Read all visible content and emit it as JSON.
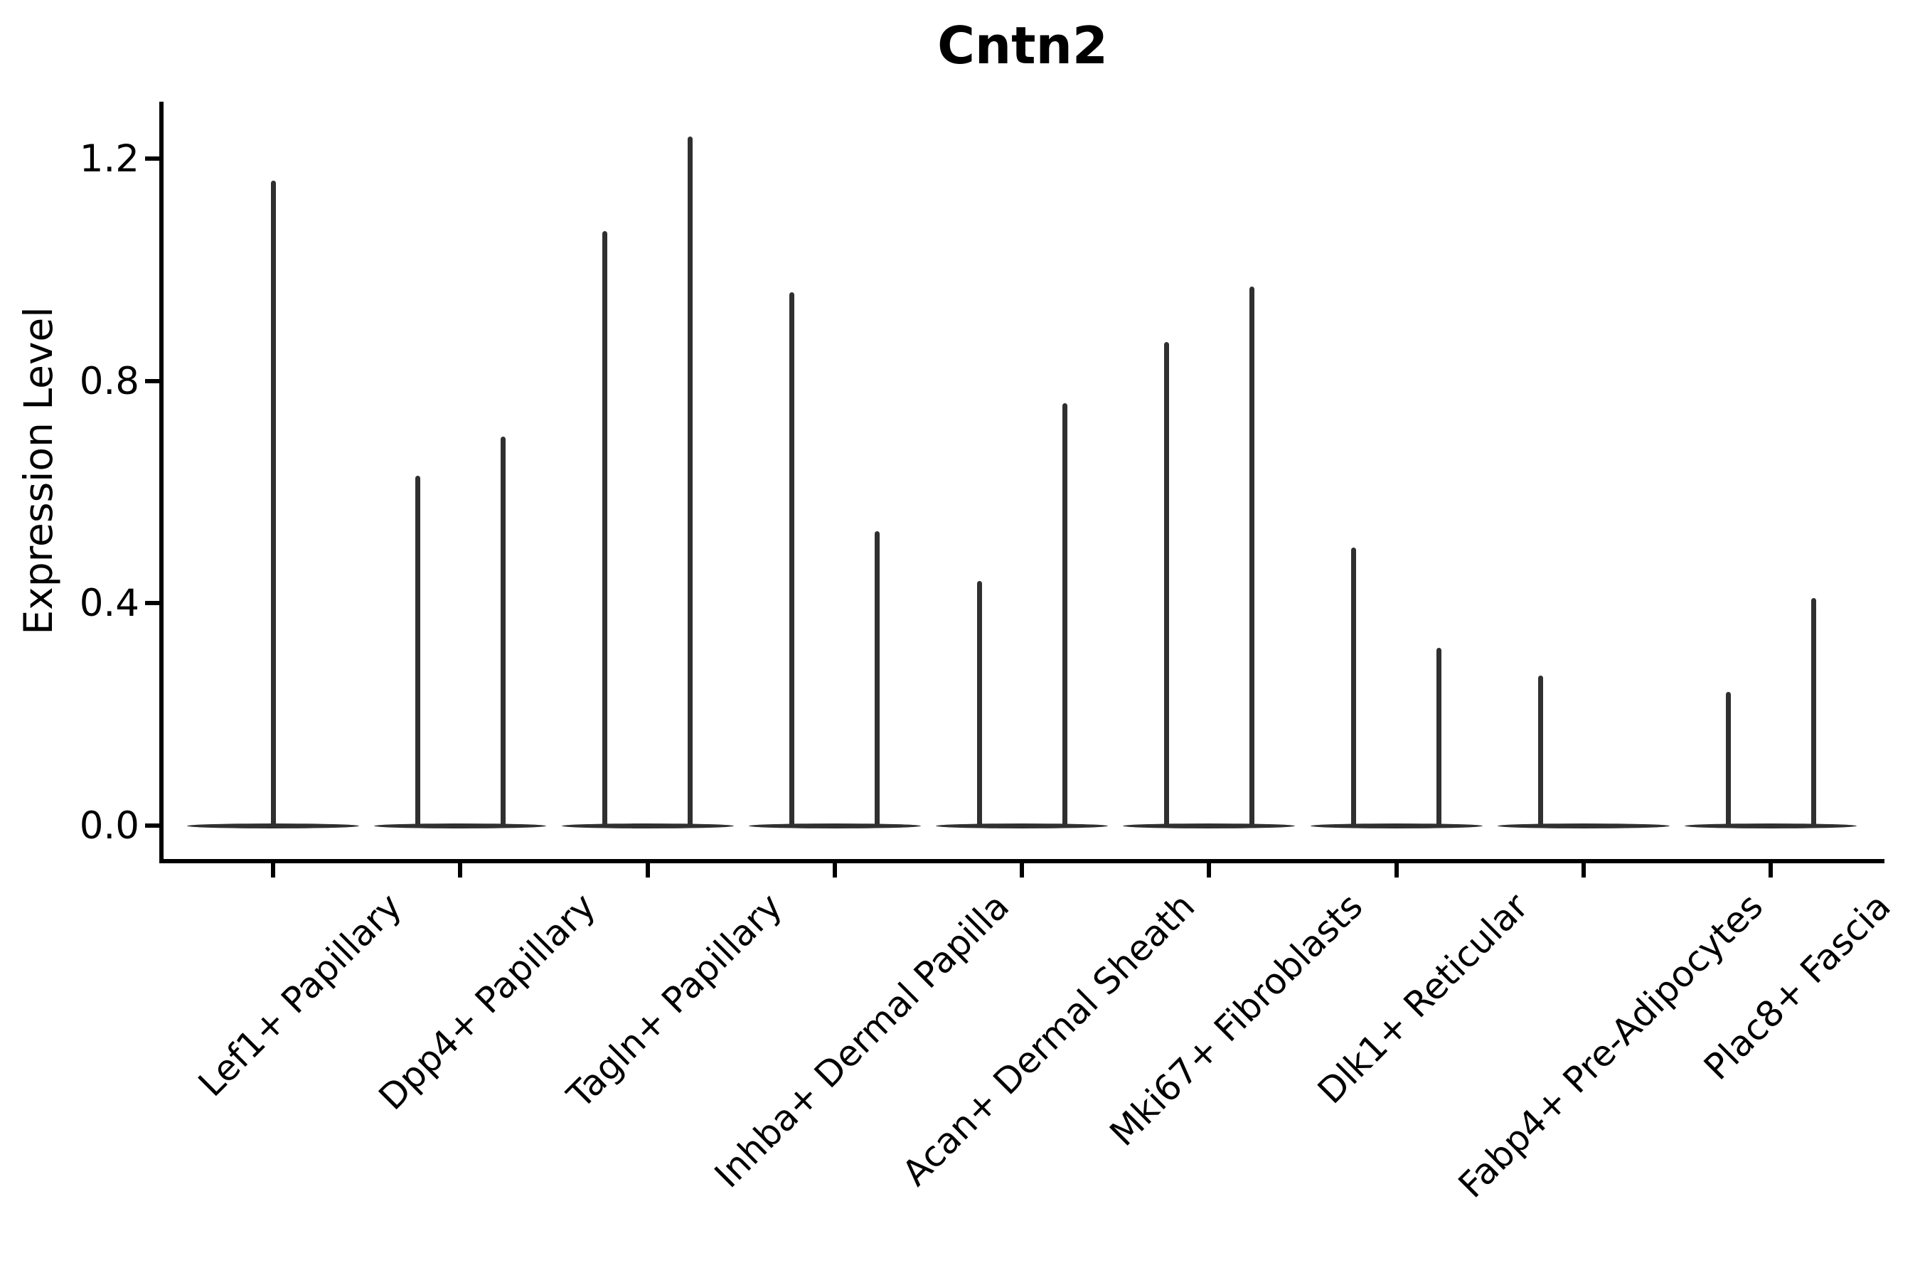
{
  "figure": {
    "background": "#ffffff"
  },
  "chart_data": {
    "type": "violin",
    "title": "Cntn2",
    "ylabel": "Expression Level",
    "xlabel": "",
    "grid": false,
    "legend": null,
    "ylim": [
      0,
      1.3
    ],
    "yticks": [
      0,
      0.4,
      0.8,
      1.2
    ],
    "ytick_labels": [
      "0.0",
      "0.4",
      "0.8",
      "1.2"
    ],
    "categories": [
      "Lef1+ Papillary",
      "Dpp4+ Papillary",
      "Tagln+ Papillary",
      "Inhba+ Dermal Papilla",
      "Acan+ Dermal Sheath",
      "Mki67+ Fibroblasts",
      "Dlk1+ Reticular",
      "Fabp4+ Pre-Adipocytes",
      "Plac8+ Fascia"
    ],
    "violins": [
      {
        "category": "Lef1+ Papillary",
        "spikes": [
          {
            "position": "center",
            "max_expression": 1.16
          }
        ]
      },
      {
        "category": "Dpp4+ Papillary",
        "spikes": [
          {
            "position": "left",
            "max_expression": 0.63
          },
          {
            "position": "right",
            "max_expression": 0.7
          }
        ]
      },
      {
        "category": "Tagln+ Papillary",
        "spikes": [
          {
            "position": "left",
            "max_expression": 1.07
          },
          {
            "position": "right",
            "max_expression": 1.24
          }
        ]
      },
      {
        "category": "Inhba+ Dermal Papilla",
        "spikes": [
          {
            "position": "left",
            "max_expression": 0.96
          },
          {
            "position": "right",
            "max_expression": 0.53
          }
        ]
      },
      {
        "category": "Acan+ Dermal Sheath",
        "spikes": [
          {
            "position": "left",
            "max_expression": 0.44
          },
          {
            "position": "right",
            "max_expression": 0.76
          }
        ]
      },
      {
        "category": "Mki67+ Fibroblasts",
        "spikes": [
          {
            "position": "left",
            "max_expression": 0.87
          },
          {
            "position": "right",
            "max_expression": 0.97
          }
        ]
      },
      {
        "category": "Dlk1+ Reticular",
        "spikes": [
          {
            "position": "left",
            "max_expression": 0.5
          },
          {
            "position": "right",
            "max_expression": 0.32
          }
        ]
      },
      {
        "category": "Fabp4+ Pre-Adipocytes",
        "spikes": [
          {
            "position": "left",
            "max_expression": 0.27
          }
        ]
      },
      {
        "category": "Plac8+ Fascia",
        "spikes": [
          {
            "position": "left",
            "max_expression": 0.24
          },
          {
            "position": "right",
            "max_expression": 0.41
          }
        ]
      }
    ],
    "style": {
      "violin_color": "#303030",
      "axis_color": "#000000",
      "text_color": "#000000"
    }
  }
}
